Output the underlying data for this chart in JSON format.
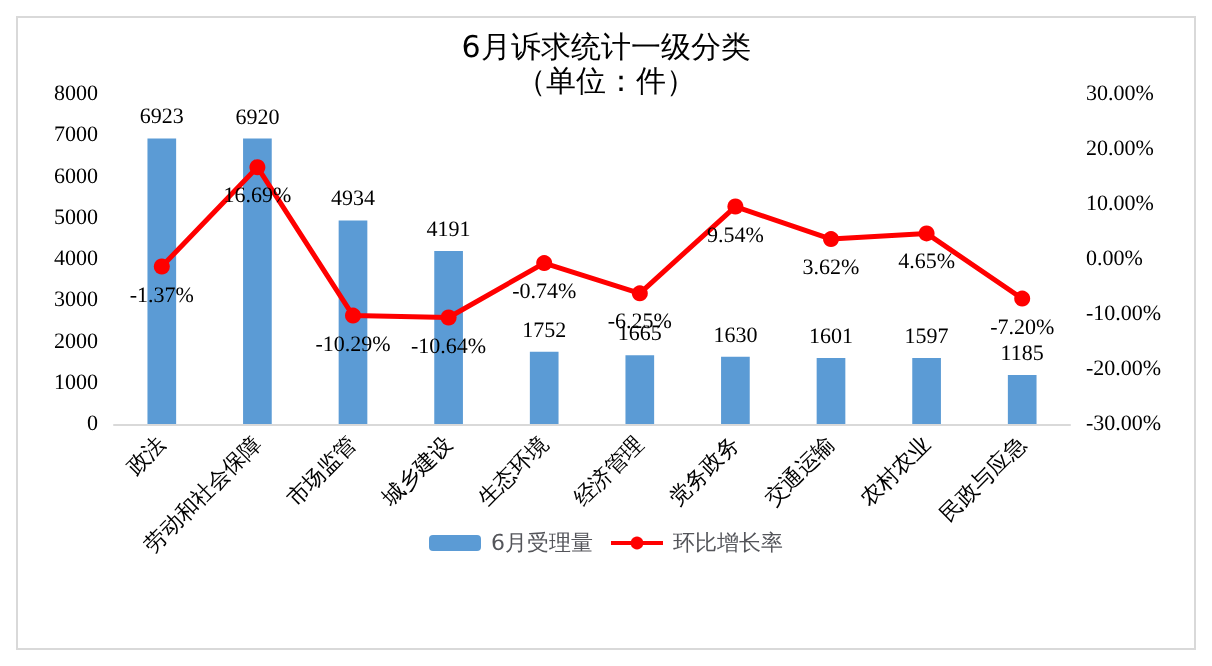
{
  "chart_data": {
    "type": "bar",
    "title": "6月诉求统计一级分类",
    "subtitle": "（单位：件）",
    "categories": [
      "政法",
      "劳动和社会保障",
      "市场监管",
      "城乡建设",
      "生态环境",
      "经济管理",
      "党务政务",
      "交通运输",
      "农村农业",
      "民政与应急"
    ],
    "series": [
      {
        "name": "6月受理量",
        "color": "#5b9bd5",
        "values": [
          6923,
          6920,
          4934,
          4191,
          1752,
          1665,
          1630,
          1601,
          1597,
          1185
        ],
        "data_labels": true
      },
      {
        "name": "环比增长率",
        "type": "line",
        "axis": "y2",
        "color": "#ff0000",
        "marker": "circle",
        "values": [
          -1.37,
          16.69,
          -10.29,
          -10.64,
          -0.74,
          -6.25,
          9.54,
          3.62,
          4.65,
          -7.2
        ],
        "value_labels": [
          "-1.37%",
          "16.69%",
          "-10.29%",
          "-10.64%",
          "-0.74%",
          "-6.25%",
          "9.54%",
          "3.62%",
          "4.65%",
          "-7.20%"
        ]
      }
    ],
    "ylim": [
      0,
      8000
    ],
    "yticks": [
      0,
      1000,
      2000,
      3000,
      4000,
      5000,
      6000,
      7000,
      8000
    ],
    "y2lim": [
      -30,
      30
    ],
    "y2ticks": [
      {
        "value": -30,
        "label": "-30.00%"
      },
      {
        "value": -20,
        "label": "-20.00%"
      },
      {
        "value": -10,
        "label": "-10.00%"
      },
      {
        "value": 0,
        "label": "0.00%"
      },
      {
        "value": 10,
        "label": "10.00%"
      },
      {
        "value": 20,
        "label": "20.00%"
      },
      {
        "value": 30,
        "label": "30.00%"
      }
    ],
    "grid": false,
    "legend": "bottom"
  }
}
